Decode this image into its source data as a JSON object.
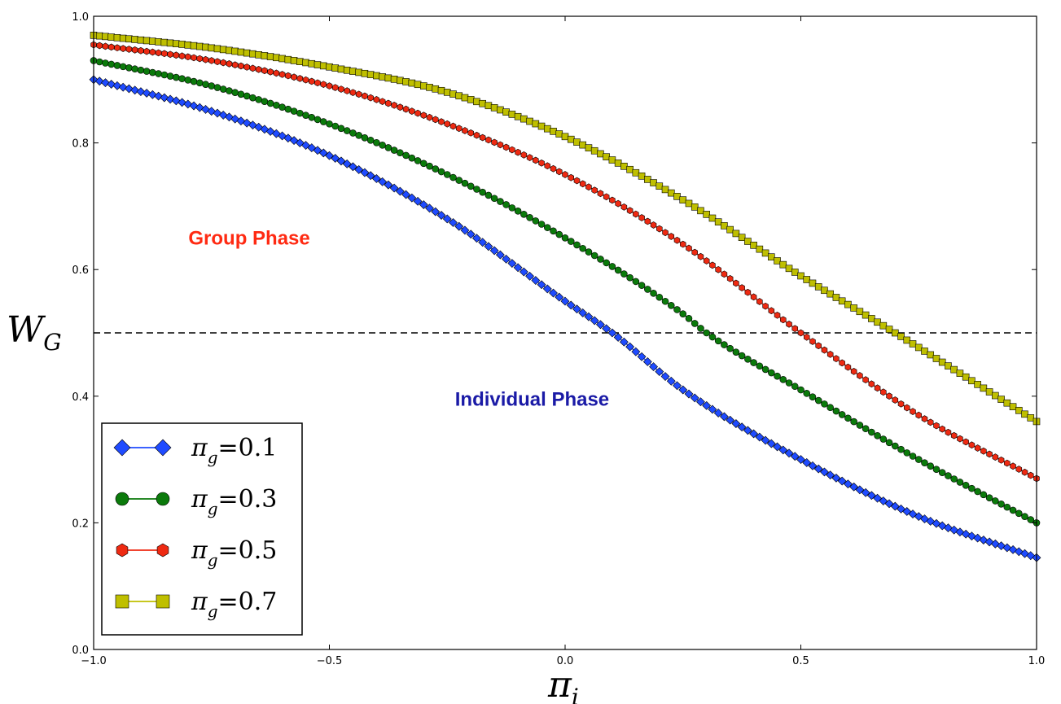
{
  "chart_data": {
    "type": "line",
    "xlabel": "π",
    "xlabel_sub": "i",
    "ylabel": "W",
    "ylabel_sub": "G",
    "xlim": [
      -1.0,
      1.0
    ],
    "ylim": [
      0.0,
      1.0
    ],
    "xticks": [
      "−1.0",
      "−0.5",
      "0.0",
      "0.5",
      "1.0"
    ],
    "xtick_values": [
      -1.0,
      -0.5,
      0.0,
      0.5,
      1.0
    ],
    "yticks": [
      "0.0",
      "0.2",
      "0.4",
      "0.6",
      "0.8",
      "1.0"
    ],
    "ytick_values": [
      0.0,
      0.2,
      0.4,
      0.6,
      0.8,
      1.0
    ],
    "grid": false,
    "legend_position": "bottom-left",
    "threshold": {
      "y": 0.5,
      "style": "dashed"
    },
    "annotations": [
      {
        "text": "Group Phase",
        "x": -0.67,
        "y": 0.65,
        "color": "#ff2a12"
      },
      {
        "text": "Individual Phase",
        "x": -0.07,
        "y": 0.395,
        "color": "#1a1aa6"
      }
    ],
    "series": [
      {
        "name_prefix": "π",
        "name_sub": "g",
        "name_value": "=0.1",
        "color": "#1f4bff",
        "marker": "diamond",
        "x": [
          -1.0,
          -0.75,
          -0.5,
          -0.25,
          0.0,
          0.1,
          0.25,
          0.5,
          0.75,
          1.0
        ],
        "y": [
          0.9,
          0.85,
          0.78,
          0.68,
          0.55,
          0.5,
          0.41,
          0.3,
          0.21,
          0.145
        ]
      },
      {
        "name_prefix": "π",
        "name_sub": "g",
        "name_value": "=0.3",
        "color": "#0b7a0b",
        "marker": "circle",
        "x": [
          -1.0,
          -0.75,
          -0.5,
          -0.25,
          0.0,
          0.25,
          0.3,
          0.5,
          0.75,
          1.0
        ],
        "y": [
          0.93,
          0.89,
          0.83,
          0.75,
          0.65,
          0.53,
          0.5,
          0.41,
          0.3,
          0.2
        ]
      },
      {
        "name_prefix": "π",
        "name_sub": "g",
        "name_value": "=0.5",
        "color": "#ee2a12",
        "marker": "hexagon",
        "x": [
          -1.0,
          -0.75,
          -0.5,
          -0.25,
          0.0,
          0.25,
          0.5,
          0.75,
          1.0
        ],
        "y": [
          0.955,
          0.93,
          0.89,
          0.83,
          0.75,
          0.64,
          0.5,
          0.37,
          0.27
        ]
      },
      {
        "name_prefix": "π",
        "name_sub": "g",
        "name_value": "=0.7",
        "color": "#bfbf00",
        "marker": "square",
        "x": [
          -1.0,
          -0.75,
          -0.5,
          -0.25,
          0.0,
          0.25,
          0.5,
          0.7,
          1.0
        ],
        "y": [
          0.97,
          0.95,
          0.92,
          0.88,
          0.81,
          0.71,
          0.59,
          0.5,
          0.36
        ]
      }
    ]
  }
}
